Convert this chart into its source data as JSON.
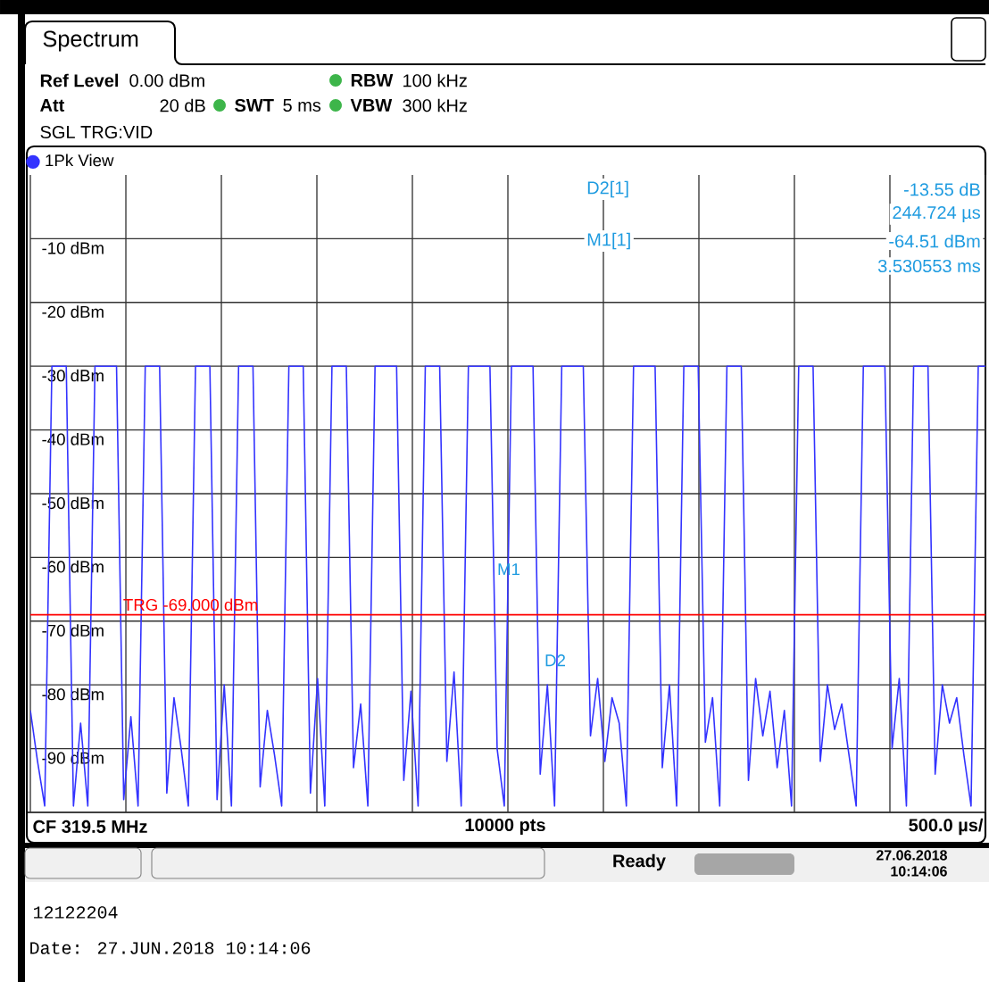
{
  "chart_data": {
    "type": "line",
    "title": "Spectrum",
    "categories": [
      null,
      null,
      null,
      null,
      null,
      null,
      null,
      null,
      null,
      null,
      null,
      null,
      null,
      null,
      null,
      null,
      null,
      null,
      null,
      null,
      null,
      null,
      null,
      null,
      null,
      null,
      null,
      null,
      null,
      null,
      null,
      null,
      null,
      null,
      null,
      null,
      null,
      null,
      null,
      null,
      null,
      null,
      null,
      null,
      null,
      null,
      null,
      null,
      null,
      null,
      null,
      null,
      null,
      null,
      null,
      null,
      null,
      null,
      null,
      null,
      null,
      null,
      null,
      null,
      null,
      null,
      null,
      null,
      null,
      null,
      null,
      null,
      null,
      null,
      null,
      null,
      null,
      null,
      null,
      null,
      null,
      null,
      null,
      null,
      null,
      null,
      null,
      null,
      null,
      null,
      null,
      null,
      null,
      null,
      null,
      null,
      null,
      null,
      null,
      null,
      null,
      null,
      null,
      null,
      null,
      null,
      null,
      null,
      null,
      null,
      null,
      null,
      null,
      null,
      null,
      null,
      null,
      null,
      null,
      null,
      null,
      null,
      null,
      null,
      null,
      null,
      null,
      null,
      null,
      null,
      null,
      null,
      null,
      null
    ],
    "series": [
      {
        "name": "1Pk View",
        "color": "#3333ff",
        "values": [
          -84,
          -92,
          -99,
          -30,
          -30,
          -30,
          -99,
          -86,
          -99,
          -30,
          -30,
          -30,
          -30,
          -98,
          -85,
          -99,
          -30,
          -30,
          -30,
          -97,
          -82,
          -90,
          -99,
          -30,
          -30,
          -30,
          -98,
          -80,
          -99,
          -30,
          -30,
          -30,
          -96,
          -84,
          -91,
          -99,
          -30,
          -30,
          -30,
          -97,
          -79,
          -99,
          -30,
          -30,
          -30,
          -93,
          -83,
          -99,
          -30,
          -30,
          -30,
          -30,
          -95,
          -81,
          -99,
          -30,
          -30,
          -30,
          -92,
          -78,
          -99,
          -30,
          -30,
          -30,
          -30,
          -90,
          -99,
          -30,
          -30,
          -30,
          -30,
          -94,
          -80,
          -99,
          -30,
          -30,
          -30,
          -30,
          -88,
          -79,
          -92,
          -82,
          -86,
          -99,
          -30,
          -30,
          -30,
          -30,
          -93,
          -80,
          -99,
          -30,
          -30,
          -30,
          -89,
          -82,
          -99,
          -30,
          -30,
          -30,
          -95,
          -79,
          -88,
          -81,
          -93,
          -84,
          -99,
          -30,
          -30,
          -30,
          -92,
          -80,
          -87,
          -83,
          -91,
          -99,
          -30,
          -30,
          -30,
          -30,
          -90,
          -79,
          -99,
          -30,
          -30,
          -30,
          -94,
          -80,
          -86,
          -82,
          -91,
          -99,
          -30,
          -30
        ]
      }
    ],
    "ylim": [
      -100,
      0
    ],
    "yticks": [
      {
        "value": -10,
        "label": "-10 dBm"
      },
      {
        "value": -20,
        "label": "-20 dBm"
      },
      {
        "value": -30,
        "label": "-30 dBm"
      },
      {
        "value": -40,
        "label": "-40 dBm"
      },
      {
        "value": -50,
        "label": "-50 dBm"
      },
      {
        "value": -60,
        "label": "-60 dBm"
      },
      {
        "value": -70,
        "label": "-70 dBm"
      },
      {
        "value": -80,
        "label": "-80 dBm"
      },
      {
        "value": -90,
        "label": "-90 dBm"
      }
    ],
    "ref_lines": [
      {
        "axis": "y",
        "value": -69,
        "label": "TRG  -69.000 dBm",
        "color": "#ff0000"
      }
    ],
    "grid": true,
    "legend": "top left",
    "tick_labels": "y",
    "line_style": "solid",
    "annotations": [
      "Ref Level",
      "0.00 dBm",
      "RBW",
      "100 kHz",
      "Att",
      "20 dB",
      "SWT",
      "5 ms",
      "VBW",
      "300 kHz",
      "SGL TRG:VID",
      "D2[1]",
      "-13.55 dB",
      "244.724 µs",
      "M1[1]",
      "-64.51 dBm",
      "3.530553 ms",
      "CF 319.5 MHz",
      "10000 pts",
      "500.0 µs/",
      "Ready",
      "27.06.2018",
      "10:14:06",
      "12122204",
      "Date: 27.JUN.2018  10:14:06",
      {
        "text": "M1",
        "y": -64.51
      },
      {
        "text": "D2",
        "y": -78.06
      }
    ]
  }
}
